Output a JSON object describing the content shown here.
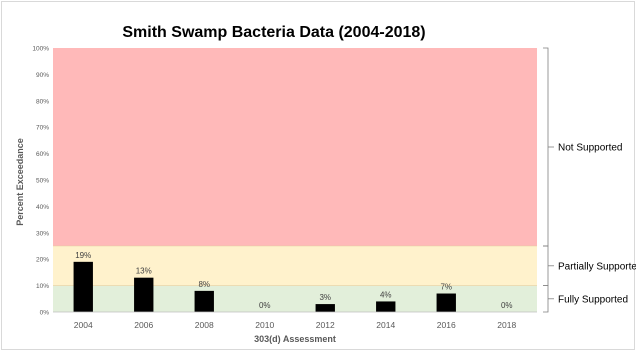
{
  "chart_data": {
    "type": "bar",
    "title": "Smith Swamp Bacteria Data (2004-2018)",
    "xlabel": "303(d) Assessment",
    "ylabel": "Percent Exceedance",
    "categories": [
      "2004",
      "2006",
      "2008",
      "2010",
      "2012",
      "2014",
      "2016",
      "2018"
    ],
    "series": [
      {
        "values": [
          19,
          13,
          8,
          0,
          3,
          4,
          7,
          0
        ]
      }
    ],
    "data_labels": [
      "19%",
      "13%",
      "8%",
      "0%",
      "3%",
      "4%",
      "7%",
      "0%"
    ],
    "ylim": [
      0,
      100
    ],
    "yticks": [
      "0%",
      "10%",
      "20%",
      "30%",
      "40%",
      "50%",
      "60%",
      "70%",
      "80%",
      "90%",
      "100%"
    ],
    "bar_color": "#000000",
    "zones": [
      {
        "label": "Fully Supported",
        "from": 0,
        "to": 10,
        "color": "#e2efda"
      },
      {
        "label": "Partially Supporte",
        "from": 10,
        "to": 25,
        "color": "#fff2cc"
      },
      {
        "label": "Not Supported",
        "from": 25,
        "to": 100,
        "color": "#ffb9b9"
      }
    ],
    "grid": false,
    "legend": "right-brackets"
  }
}
